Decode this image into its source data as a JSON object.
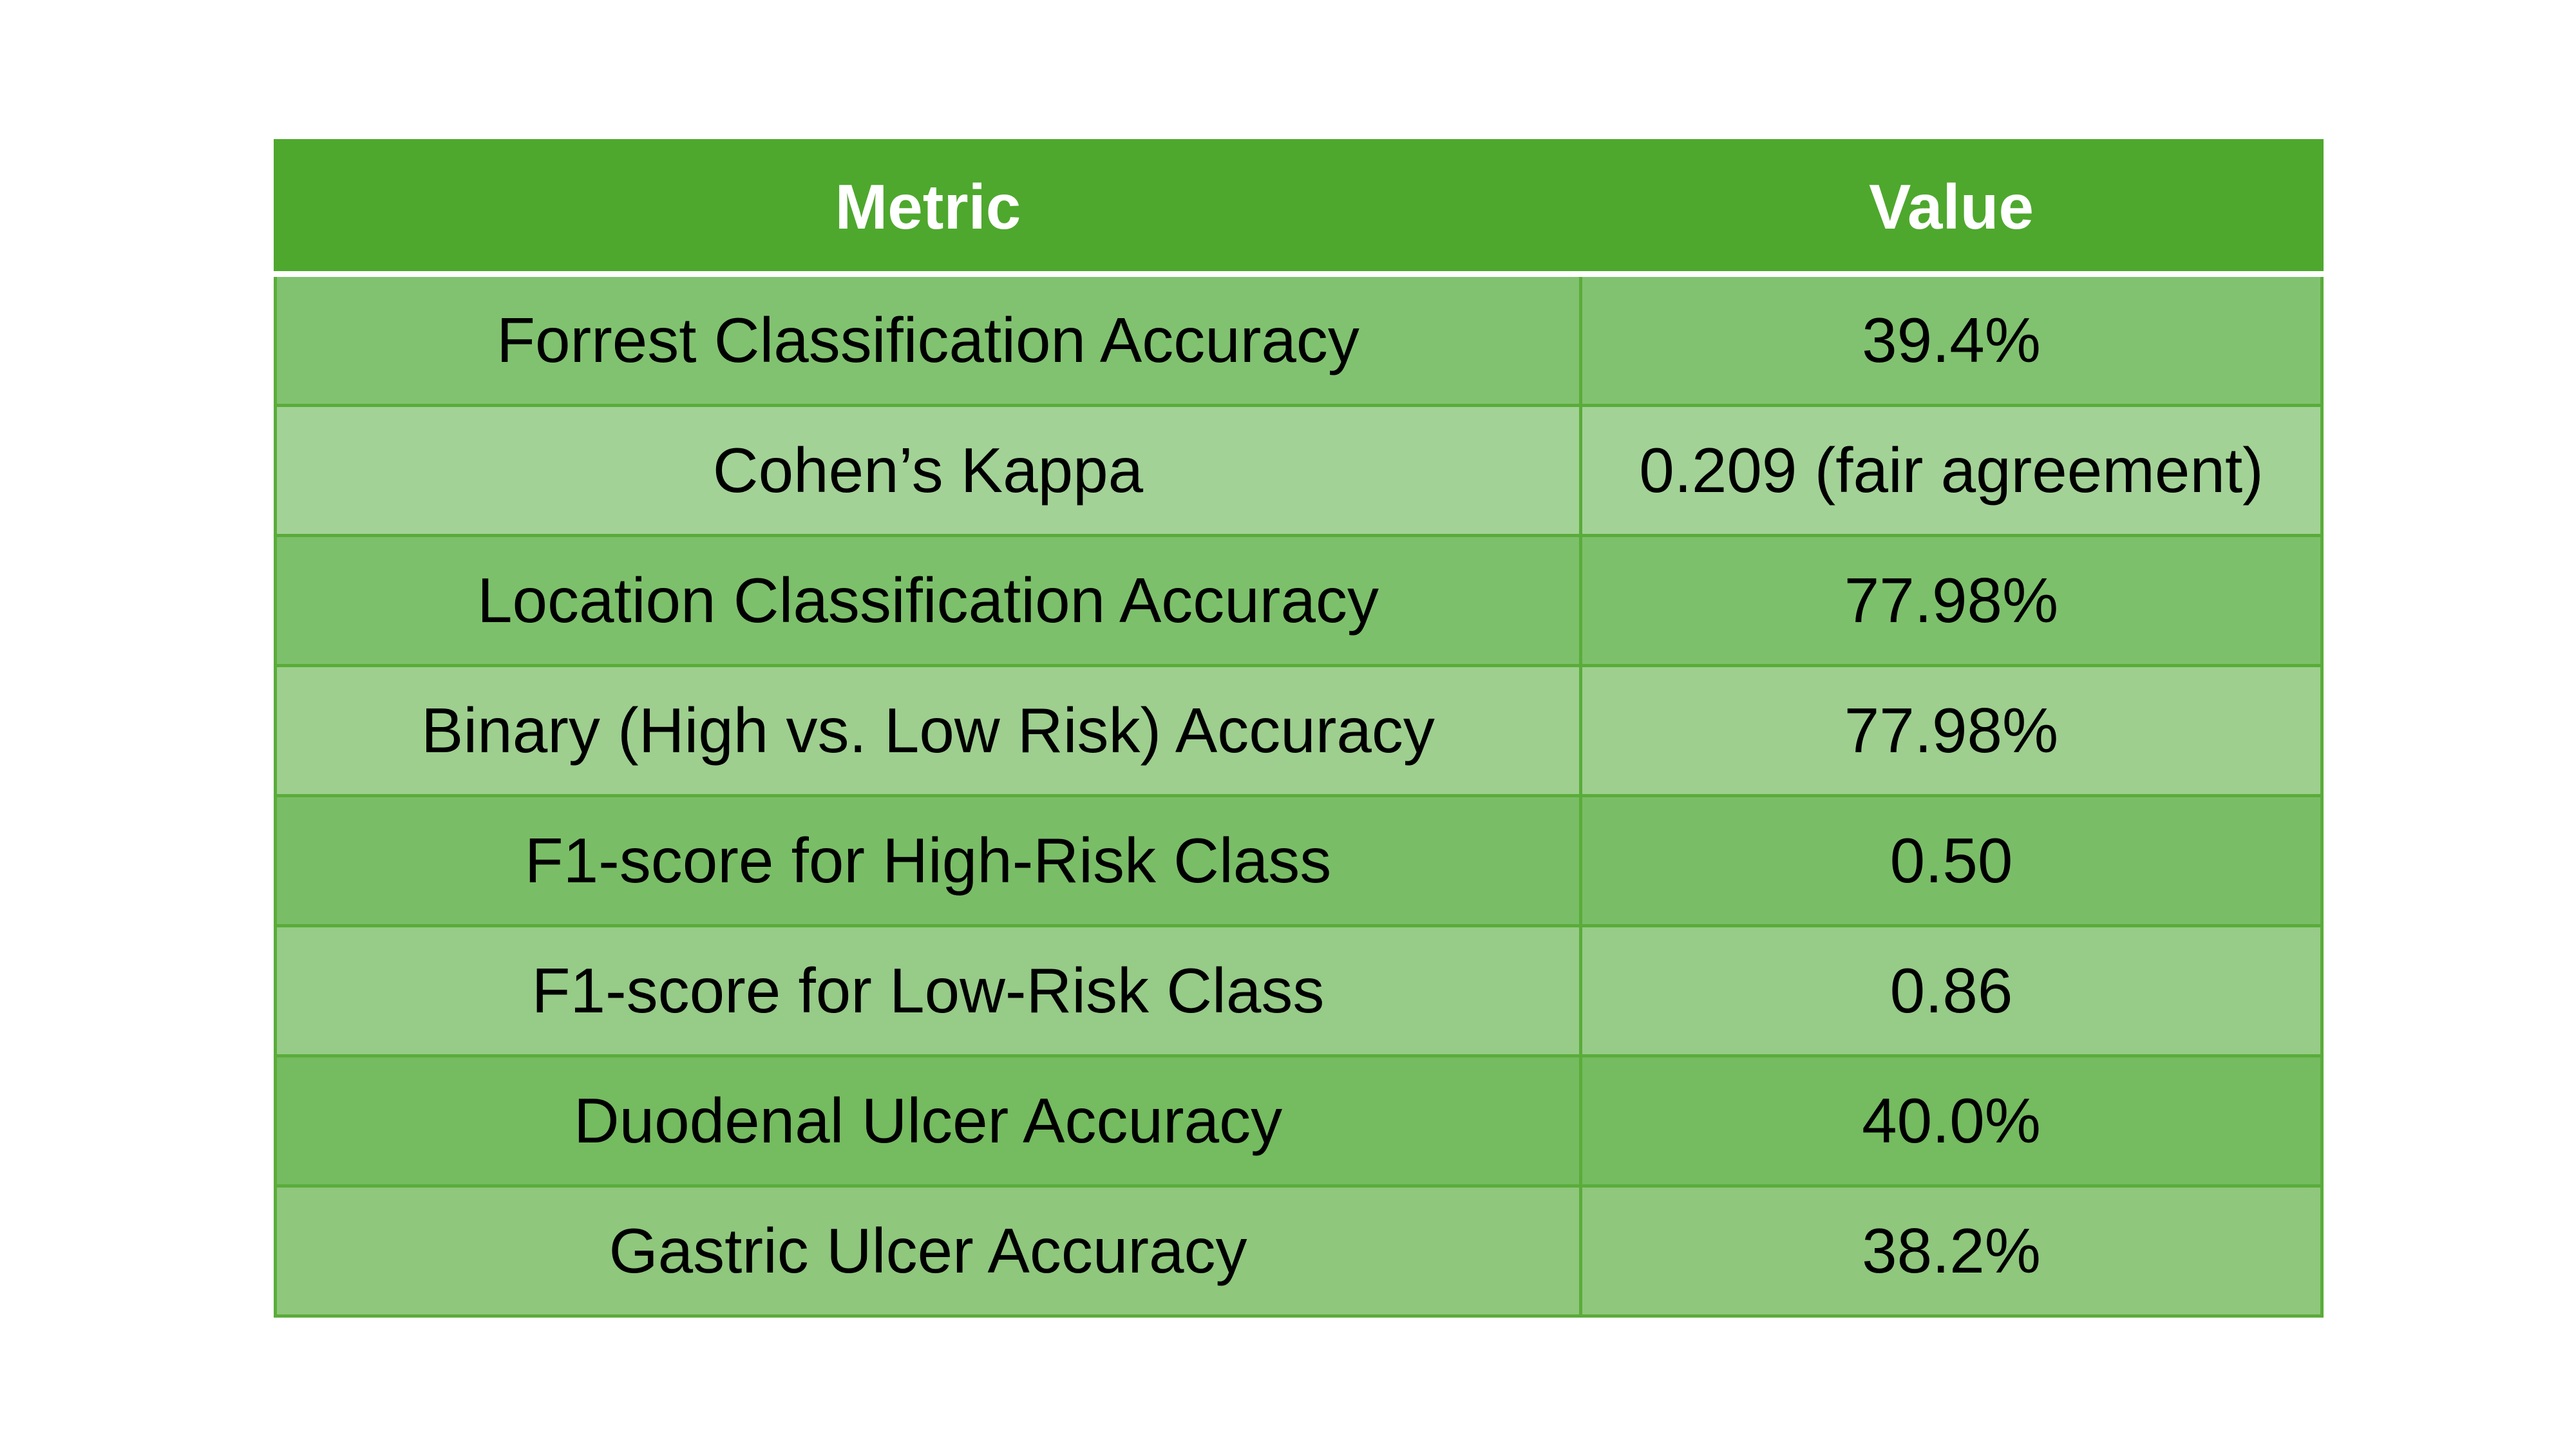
{
  "table": {
    "headers": {
      "metric": "Metric",
      "value": "Value"
    },
    "rows": [
      {
        "metric": "Forrest Classification Accuracy",
        "value": "39.4%"
      },
      {
        "metric": "Cohen’s Kappa",
        "value": "0.209 (fair agreement)"
      },
      {
        "metric": "Location Classification Accuracy",
        "value": "77.98%"
      },
      {
        "metric": "Binary (High vs. Low Risk) Accuracy",
        "value": "77.98%"
      },
      {
        "metric": "F1-score for High-Risk Class",
        "value": "0.50"
      },
      {
        "metric": "F1-score for Low-Risk Class",
        "value": "0.86"
      },
      {
        "metric": "Duodenal Ulcer Accuracy",
        "value": "40.0%"
      },
      {
        "metric": "Gastric Ulcer Accuracy",
        "value": "38.2%"
      }
    ]
  },
  "colors": {
    "header_background": "#4ea82d",
    "header_text": "#ffffff",
    "border": "#5aac3a",
    "row_backgrounds": [
      "#81c270",
      "#a3d297",
      "#7dc06b",
      "#9ecf8f",
      "#7abd67",
      "#97cb88",
      "#75bb60",
      "#8fc77d"
    ]
  }
}
